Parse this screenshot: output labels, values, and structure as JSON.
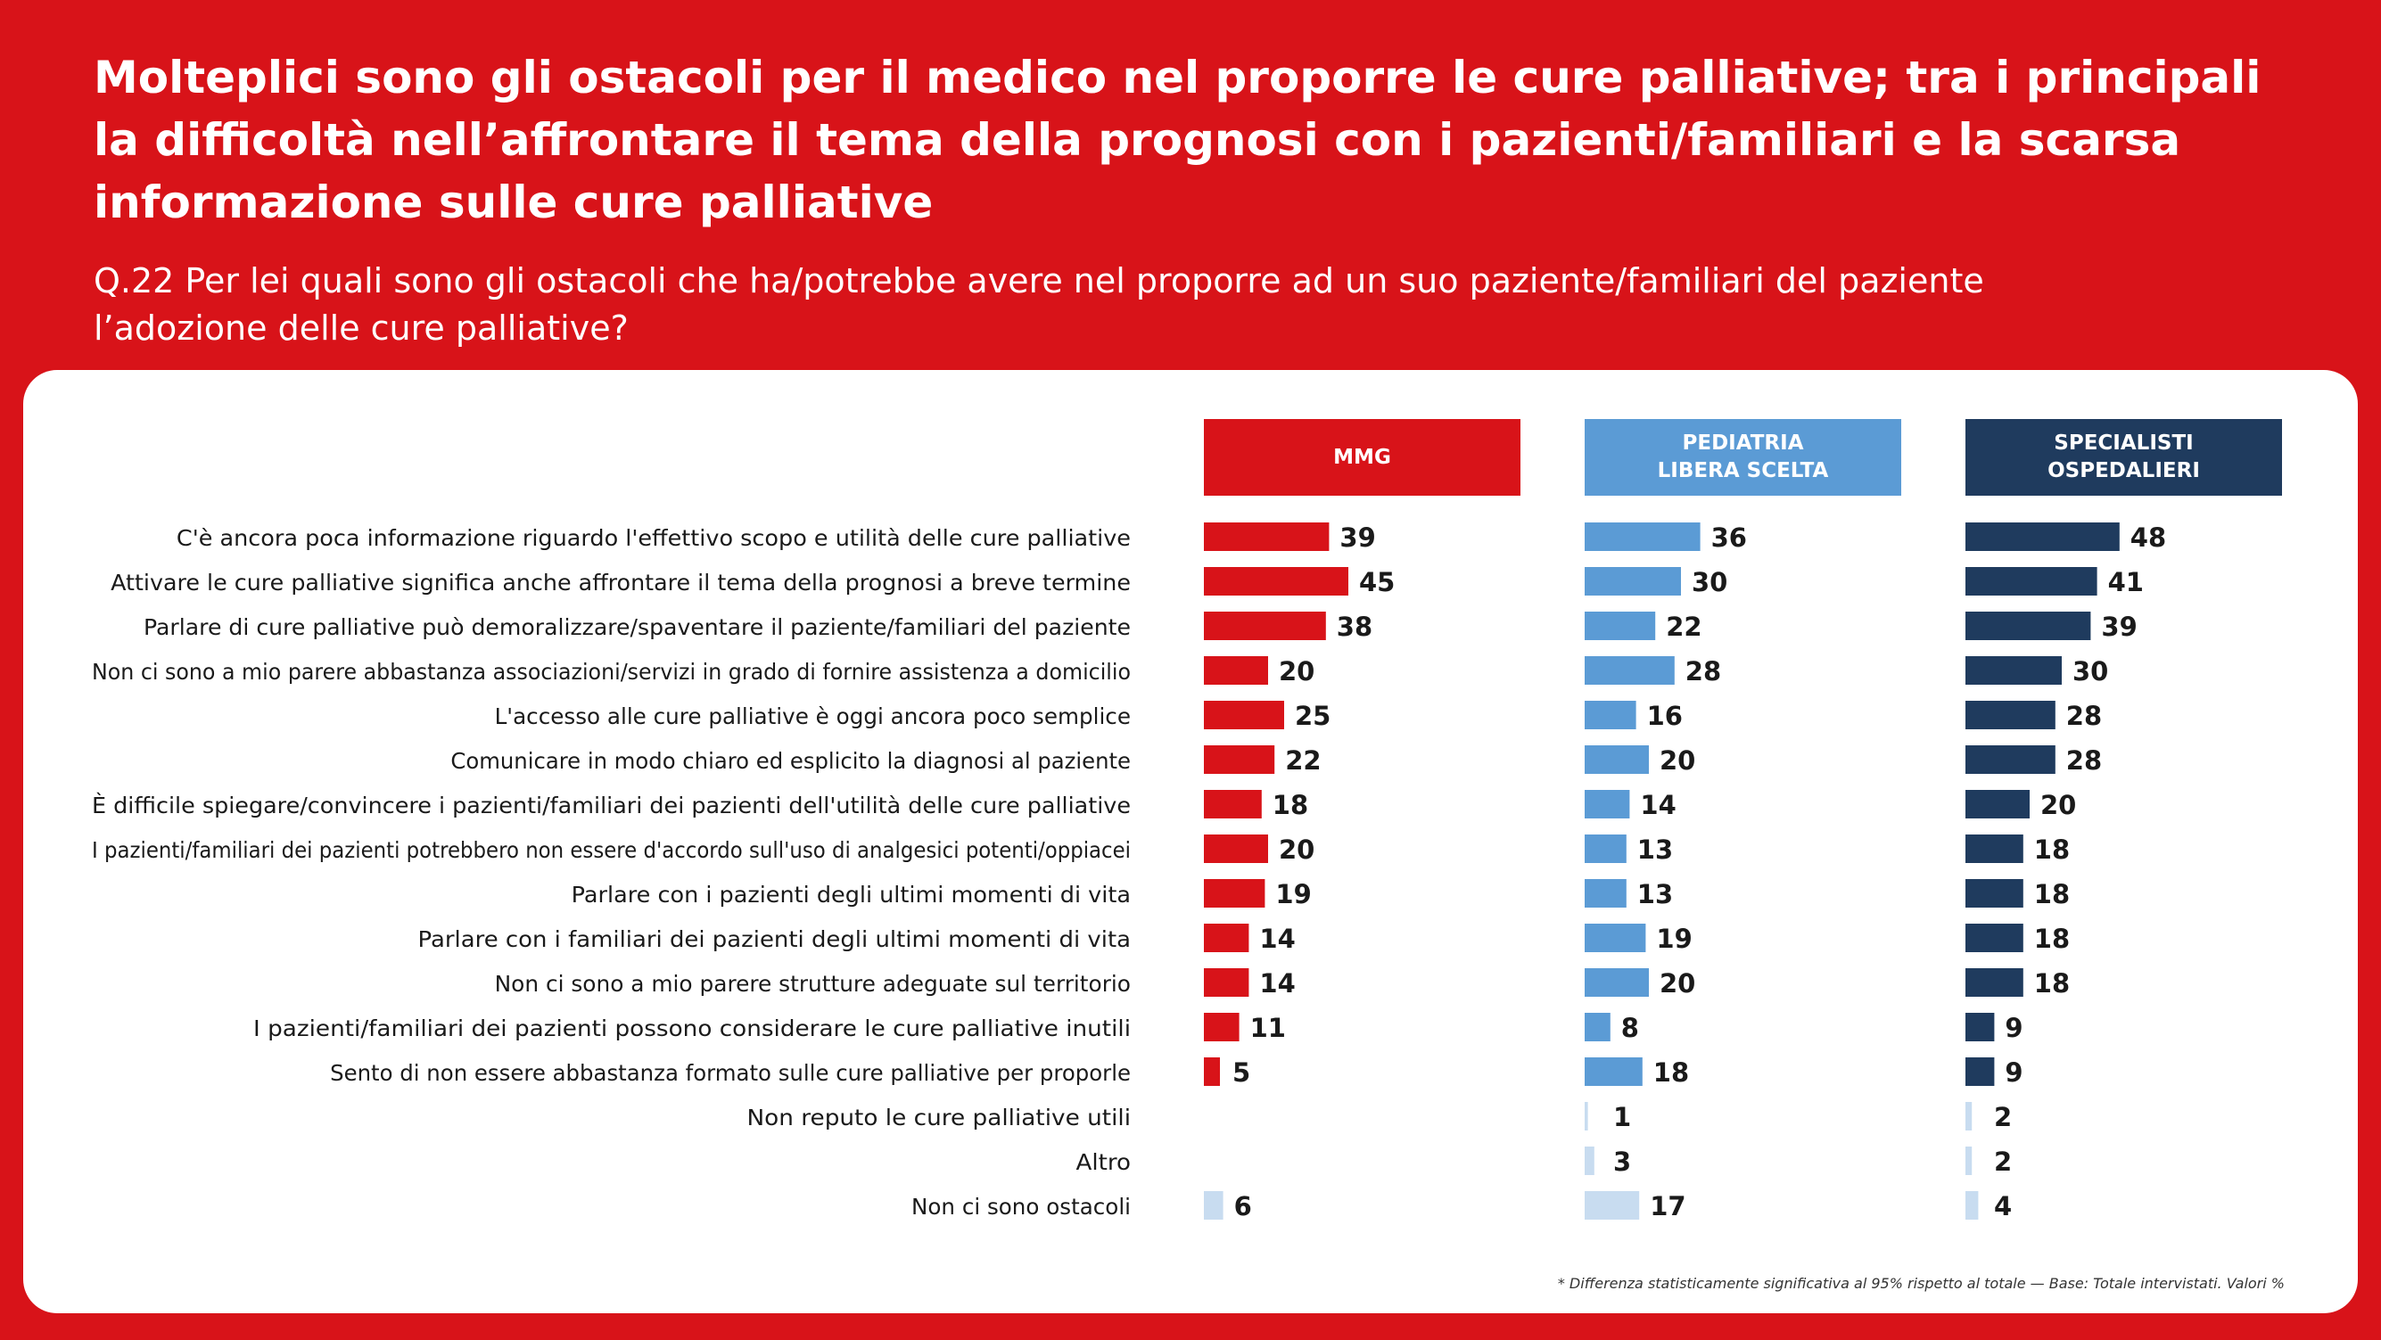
{
  "header": {
    "title": "Molteplici sono gli ostacoli per il medico nel proporre le cure palliative; tra i principali la difficoltà nell’affrontare il tema della prognosi con i pazienti/familiari e la scarsa informazione sulle cure palliative",
    "question": "Q.22 Per lei quali sono gli ostacoli che ha/potrebbe avere nel proporre ad un suo paziente/familiari del paziente l’adozione delle cure palliative?"
  },
  "footnote": "* Differenza statisticamente significativa al 95% rispetto al totale — Base: Totale intervistati. Valori %",
  "colors": {
    "background": "#d81319",
    "mmg": "#d81319",
    "pediatria": "#5b9bd5",
    "specialisti": "#1f3b5e",
    "light": "#c8dcf0"
  },
  "chart_data": {
    "type": "bar",
    "orientation": "horizontal",
    "categories": [
      "C'è ancora poca informazione riguardo l'effettivo scopo e utilità delle cure palliative",
      "Attivare le cure palliative significa anche affrontare il tema della prognosi a breve termine",
      "Parlare di cure palliative può demoralizzare/spaventare il paziente/familiari del paziente",
      "Non ci sono a mio parere abbastanza associazioni/servizi in grado di fornire assistenza a domicilio",
      "L'accesso alle cure palliative è oggi ancora poco semplice",
      "Comunicare in modo chiaro ed esplicito la diagnosi al paziente",
      "È difficile spiegare/convincere i pazienti/familiari dei pazienti dell'utilità delle cure palliative",
      "I pazienti/familiari dei pazienti potrebbero non essere d'accordo sull'uso di analgesici potenti/oppiacei",
      "Parlare con i pazienti degli ultimi momenti di vita",
      "Parlare con i familiari dei pazienti degli ultimi momenti di vita",
      "Non ci sono a mio parere strutture adeguate sul territorio",
      "I pazienti/familiari dei pazienti possono considerare le cure palliative inutili",
      "Sento di non essere abbastanza formato sulle cure palliative per proporle",
      "Non reputo le cure palliative utili",
      "Altro",
      "Non ci sono ostacoli"
    ],
    "series": [
      {
        "name": "MMG",
        "header_lines": [
          "MMG"
        ],
        "values": [
          39,
          45,
          38,
          20,
          25,
          22,
          18,
          20,
          19,
          14,
          14,
          11,
          5,
          null,
          null,
          6
        ]
      },
      {
        "name": "PEDIATRIA LIBERA SCELTA",
        "header_lines": [
          "PEDIATRIA",
          "LIBERA SCELTA"
        ],
        "values": [
          36,
          30,
          22,
          28,
          16,
          20,
          14,
          13,
          13,
          19,
          20,
          8,
          18,
          1,
          3,
          17
        ]
      },
      {
        "name": "SPECIALISTI OSPEDALIERI",
        "header_lines": [
          "SPECIALISTI",
          "OSPEDALIERI"
        ],
        "values": [
          48,
          41,
          39,
          30,
          28,
          28,
          20,
          18,
          18,
          18,
          18,
          9,
          9,
          2,
          2,
          4
        ]
      }
    ],
    "light_rows": [
      13,
      14,
      15
    ],
    "xlim": [
      0,
      100
    ]
  }
}
